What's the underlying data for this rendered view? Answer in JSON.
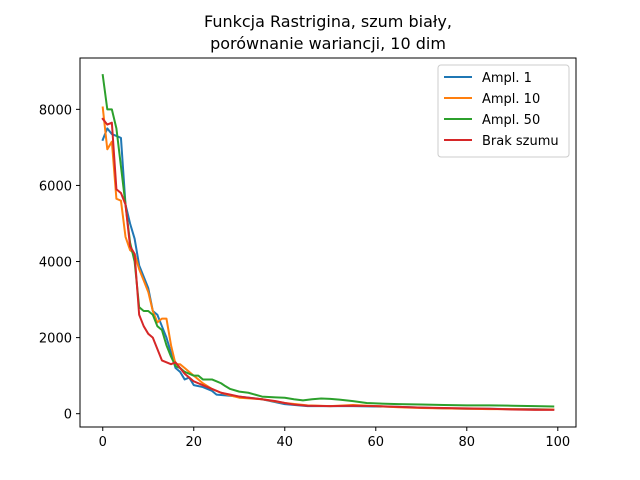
{
  "chart_data": {
    "type": "line",
    "title": [
      "Funkcja Rastrigina, szum biały,",
      "porównanie wariancji, 10 dim"
    ],
    "xlabel": "",
    "ylabel": "",
    "xlim": [
      -5,
      104
    ],
    "ylim": [
      -350,
      9350
    ],
    "x_ticks": [
      0,
      20,
      40,
      60,
      80,
      100
    ],
    "y_ticks": [
      0,
      2000,
      4000,
      6000,
      8000
    ],
    "grid": false,
    "legend_position": "top-right",
    "series": [
      {
        "name": "Ampl. 1",
        "color": "#1f77b4",
        "points": [
          [
            0,
            7200
          ],
          [
            1,
            7500
          ],
          [
            2,
            7350
          ],
          [
            3,
            7300
          ],
          [
            4,
            7250
          ],
          [
            5,
            5500
          ],
          [
            6,
            5000
          ],
          [
            7,
            4600
          ],
          [
            8,
            3900
          ],
          [
            9,
            3600
          ],
          [
            10,
            3300
          ],
          [
            11,
            2700
          ],
          [
            12,
            2600
          ],
          [
            13,
            2300
          ],
          [
            14,
            2000
          ],
          [
            15,
            1600
          ],
          [
            16,
            1200
          ],
          [
            17,
            1100
          ],
          [
            18,
            900
          ],
          [
            19,
            950
          ],
          [
            20,
            750
          ],
          [
            22,
            700
          ],
          [
            24,
            600
          ],
          [
            25,
            500
          ],
          [
            27,
            480
          ],
          [
            30,
            450
          ],
          [
            35,
            380
          ],
          [
            40,
            250
          ],
          [
            45,
            200
          ],
          [
            50,
            200
          ],
          [
            55,
            200
          ],
          [
            60,
            190
          ],
          [
            65,
            180
          ],
          [
            70,
            160
          ],
          [
            75,
            140
          ],
          [
            80,
            130
          ],
          [
            85,
            130
          ],
          [
            90,
            120
          ],
          [
            95,
            120
          ],
          [
            99,
            110
          ]
        ]
      },
      {
        "name": "Ampl. 10",
        "color": "#ff7f0e",
        "points": [
          [
            0,
            8050
          ],
          [
            1,
            6950
          ],
          [
            2,
            7150
          ],
          [
            3,
            5650
          ],
          [
            4,
            5600
          ],
          [
            5,
            4650
          ],
          [
            6,
            4300
          ],
          [
            7,
            4200
          ],
          [
            8,
            3800
          ],
          [
            9,
            3500
          ],
          [
            10,
            3200
          ],
          [
            11,
            2700
          ],
          [
            12,
            2400
          ],
          [
            13,
            2500
          ],
          [
            14,
            2500
          ],
          [
            15,
            1800
          ],
          [
            16,
            1300
          ],
          [
            17,
            1300
          ],
          [
            18,
            1200
          ],
          [
            19,
            1100
          ],
          [
            20,
            1000
          ],
          [
            22,
            800
          ],
          [
            24,
            650
          ],
          [
            26,
            550
          ],
          [
            28,
            480
          ],
          [
            30,
            420
          ],
          [
            35,
            380
          ],
          [
            40,
            280
          ],
          [
            45,
            220
          ],
          [
            50,
            200
          ],
          [
            55,
            230
          ],
          [
            60,
            200
          ],
          [
            65,
            170
          ],
          [
            70,
            150
          ],
          [
            75,
            140
          ],
          [
            80,
            130
          ],
          [
            85,
            120
          ],
          [
            90,
            120
          ],
          [
            95,
            110
          ],
          [
            99,
            110
          ]
        ]
      },
      {
        "name": "Ampl. 50",
        "color": "#2ca02c",
        "points": [
          [
            0,
            8900
          ],
          [
            1,
            8000
          ],
          [
            2,
            8000
          ],
          [
            3,
            7500
          ],
          [
            4,
            6500
          ],
          [
            5,
            5500
          ],
          [
            6,
            4500
          ],
          [
            7,
            4000
          ],
          [
            8,
            2800
          ],
          [
            9,
            2700
          ],
          [
            10,
            2700
          ],
          [
            11,
            2600
          ],
          [
            12,
            2300
          ],
          [
            13,
            2200
          ],
          [
            14,
            1800
          ],
          [
            15,
            1500
          ],
          [
            16,
            1250
          ],
          [
            17,
            1200
          ],
          [
            18,
            1100
          ],
          [
            19,
            1050
          ],
          [
            20,
            1000
          ],
          [
            21,
            1000
          ],
          [
            22,
            900
          ],
          [
            23,
            900
          ],
          [
            24,
            900
          ],
          [
            25,
            850
          ],
          [
            26,
            800
          ],
          [
            27,
            720
          ],
          [
            28,
            650
          ],
          [
            30,
            580
          ],
          [
            32,
            550
          ],
          [
            35,
            450
          ],
          [
            38,
            430
          ],
          [
            40,
            420
          ],
          [
            42,
            380
          ],
          [
            44,
            350
          ],
          [
            46,
            380
          ],
          [
            48,
            400
          ],
          [
            50,
            390
          ],
          [
            52,
            370
          ],
          [
            55,
            330
          ],
          [
            58,
            280
          ],
          [
            60,
            270
          ],
          [
            65,
            250
          ],
          [
            70,
            240
          ],
          [
            75,
            230
          ],
          [
            80,
            220
          ],
          [
            85,
            220
          ],
          [
            90,
            210
          ],
          [
            95,
            200
          ],
          [
            99,
            190
          ]
        ]
      },
      {
        "name": "Brak szumu",
        "color": "#d62728",
        "points": [
          [
            0,
            7750
          ],
          [
            1,
            7600
          ],
          [
            2,
            7650
          ],
          [
            3,
            5900
          ],
          [
            4,
            5800
          ],
          [
            5,
            5500
          ],
          [
            6,
            4400
          ],
          [
            7,
            4200
          ],
          [
            8,
            2600
          ],
          [
            9,
            2300
          ],
          [
            10,
            2100
          ],
          [
            11,
            2000
          ],
          [
            12,
            1700
          ],
          [
            13,
            1400
          ],
          [
            14,
            1350
          ],
          [
            15,
            1300
          ],
          [
            16,
            1350
          ],
          [
            17,
            1200
          ],
          [
            18,
            1050
          ],
          [
            19,
            950
          ],
          [
            20,
            850
          ],
          [
            22,
            750
          ],
          [
            24,
            650
          ],
          [
            26,
            550
          ],
          [
            28,
            500
          ],
          [
            30,
            450
          ],
          [
            32,
            420
          ],
          [
            35,
            380
          ],
          [
            38,
            330
          ],
          [
            40,
            280
          ],
          [
            42,
            240
          ],
          [
            45,
            210
          ],
          [
            50,
            200
          ],
          [
            55,
            210
          ],
          [
            60,
            200
          ],
          [
            65,
            180
          ],
          [
            70,
            160
          ],
          [
            75,
            150
          ],
          [
            80,
            140
          ],
          [
            85,
            130
          ],
          [
            90,
            110
          ],
          [
            95,
            100
          ],
          [
            99,
            100
          ]
        ]
      }
    ]
  }
}
